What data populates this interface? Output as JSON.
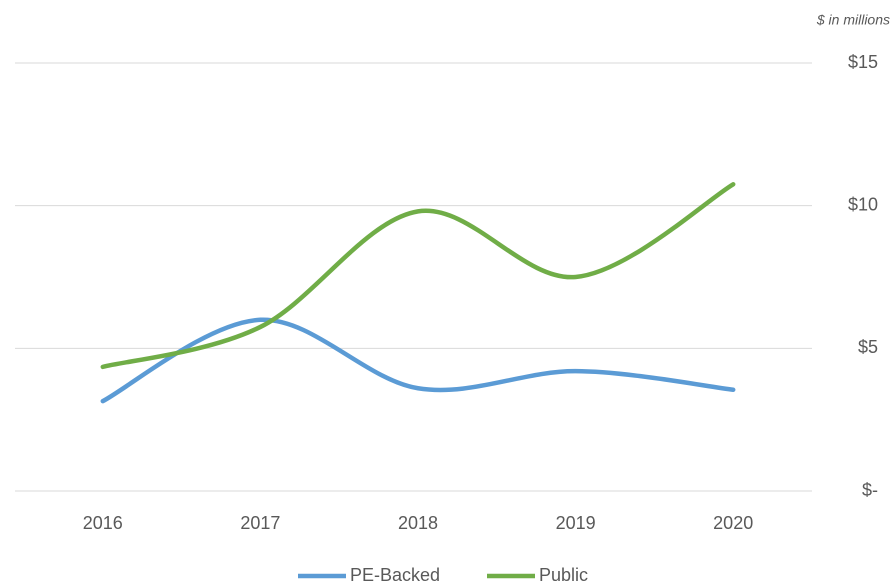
{
  "chart_data": {
    "type": "line",
    "subtitle": "$ in millions",
    "categories": [
      "2016",
      "2017",
      "2018",
      "2019",
      "2020"
    ],
    "series": [
      {
        "name": "PE-Backed",
        "color": "#5b9bd5",
        "values": [
          3.15,
          6.0,
          3.6,
          4.2,
          3.55
        ]
      },
      {
        "name": "Public",
        "color": "#70ad47",
        "values": [
          4.35,
          5.75,
          9.8,
          7.5,
          10.75
        ]
      }
    ],
    "ylim": [
      0,
      15
    ],
    "yticks": [
      {
        "value": 0,
        "label": "$-"
      },
      {
        "value": 5,
        "label": "$5"
      },
      {
        "value": 10,
        "label": "$10"
      },
      {
        "value": 15,
        "label": "$15"
      }
    ],
    "grid": true,
    "smooth": true,
    "legend": "bottom"
  }
}
